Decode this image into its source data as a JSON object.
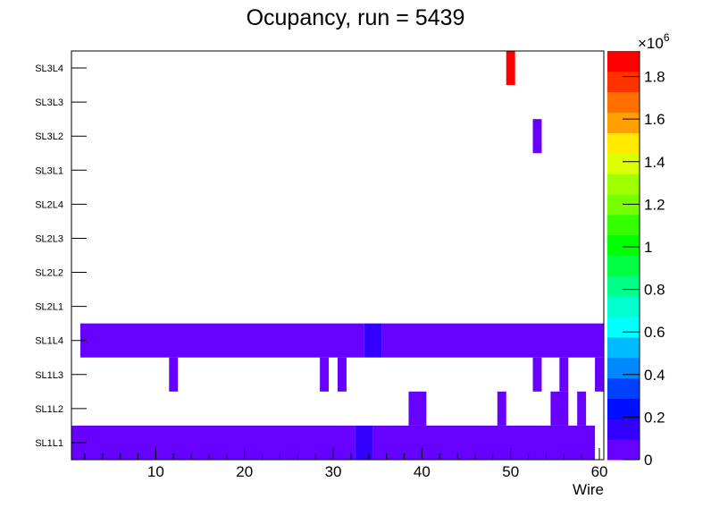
{
  "chart_data": {
    "type": "heatmap",
    "title": "Ocupancy, run = 5439",
    "xlabel": "Wire",
    "ylabel": "",
    "xlim": [
      0.5,
      60.5
    ],
    "x_ticks": [
      10,
      20,
      30,
      40,
      50,
      60
    ],
    "y_labels": [
      "SL1L1",
      "SL1L2",
      "SL1L3",
      "SL1L4",
      "SL2L1",
      "SL2L2",
      "SL2L3",
      "SL2L4",
      "SL3L1",
      "SL3L2",
      "SL3L3",
      "SL3L4"
    ],
    "colorbar": {
      "min": 0,
      "max": 1920000,
      "levels": 20,
      "exponent_label": "×10",
      "exponent": "6",
      "ticks": [
        0,
        0.2,
        0.4,
        0.6,
        0.8,
        1,
        1.2,
        1.4,
        1.6,
        1.8
      ],
      "tick_labels": [
        "0",
        "0.2",
        "0.4",
        "0.6",
        "0.8",
        "1",
        "1.2",
        "1.4",
        "1.6",
        "1.8"
      ],
      "colors": [
        "#6600ff",
        "#3300ff",
        "#0010ff",
        "#0040ff",
        "#0088ff",
        "#00bbff",
        "#00ffff",
        "#00ffcc",
        "#00ff88",
        "#00ff44",
        "#00ff00",
        "#33ff00",
        "#77ff00",
        "#a0ff00",
        "#ddff00",
        "#ffea00",
        "#ffa000",
        "#ff7000",
        "#ff3300",
        "#ff0000"
      ]
    },
    "segments": [
      {
        "layer": "SL1L1",
        "from": 1,
        "to": 32,
        "value": 50000
      },
      {
        "layer": "SL1L1",
        "from": 33,
        "to": 34,
        "value": 130000
      },
      {
        "layer": "SL1L1",
        "from": 35,
        "to": 59,
        "value": 50000
      },
      {
        "layer": "SL1L2",
        "from": 39,
        "to": 40,
        "value": 50000
      },
      {
        "layer": "SL1L2",
        "from": 49,
        "to": 49,
        "value": 50000
      },
      {
        "layer": "SL1L2",
        "from": 55,
        "to": 56,
        "value": 50000
      },
      {
        "layer": "SL1L2",
        "from": 58,
        "to": 58,
        "value": 50000
      },
      {
        "layer": "SL1L3",
        "from": 12,
        "to": 12,
        "value": 50000
      },
      {
        "layer": "SL1L3",
        "from": 29,
        "to": 29,
        "value": 50000
      },
      {
        "layer": "SL1L3",
        "from": 31,
        "to": 31,
        "value": 50000
      },
      {
        "layer": "SL1L3",
        "from": 53,
        "to": 53,
        "value": 50000
      },
      {
        "layer": "SL1L3",
        "from": 56,
        "to": 56,
        "value": 50000
      },
      {
        "layer": "SL1L3",
        "from": 60,
        "to": 60,
        "value": 50000
      },
      {
        "layer": "SL1L4",
        "from": 2,
        "to": 33,
        "value": 50000
      },
      {
        "layer": "SL1L4",
        "from": 34,
        "to": 35,
        "value": 130000
      },
      {
        "layer": "SL1L4",
        "from": 36,
        "to": 60,
        "value": 50000
      },
      {
        "layer": "SL3L2",
        "from": 53,
        "to": 53,
        "value": 50000
      },
      {
        "layer": "SL3L4",
        "from": 50,
        "to": 50,
        "value": 1900000
      }
    ]
  }
}
